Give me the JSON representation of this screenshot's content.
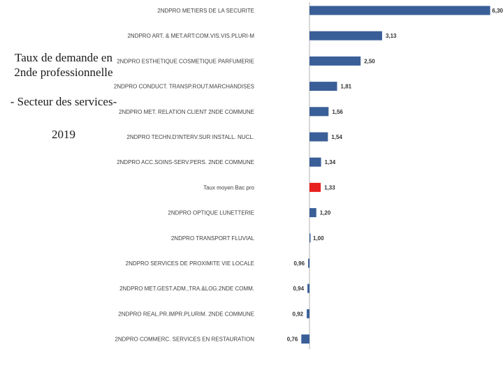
{
  "side_title": {
    "line1": "Taux de demande en 2nde professionnelle",
    "line2": "- Secteur des services-",
    "line3": "2019"
  },
  "colors": {
    "bar": "#3a5f98",
    "highlight": "#e8201f",
    "axis": "#bfbfbf"
  },
  "chart_data": {
    "type": "bar",
    "orientation": "horizontal",
    "title": "Taux de demande en 2nde professionnelle - Secteur des services- 2019",
    "baseline": 1.0,
    "categories": [
      "2NDPRO METIERS DE LA SECURITE",
      "2NDPRO ART. & MET.ART:COM.VIS.VIS.PLURI-M",
      "2NDPRO ESTHETIQUE COSMETIQUE PARFUMERIE",
      "2NDPRO CONDUCT. TRANSP.ROUT.MARCHANDISES",
      "2NDPRO MET. RELATION CLIENT 2NDE COMMUNE",
      "2NDPRO TECHN.D'INTERV.SUR INSTALL. NUCL.",
      "2NDPRO ACC.SOINS-SERV.PERS. 2NDE COMMUNE",
      "Taux moyen Bac pro",
      "2NDPRO OPTIQUE LUNETTERIE",
      "2NDPRO TRANSPORT FLUVIAL",
      "2NDPRO SERVICES DE PROXIMITE VIE LOCALE",
      "2NDPRO MET.GEST.ADM.,TRA.&LOG.2NDE COMM.",
      "2NDPRO REAL.PR.IMPR.PLURIM. 2NDE COMMUNE",
      "2NDPRO COMMERC. SERVICES EN RESTAURATION"
    ],
    "values": [
      6.3,
      3.13,
      2.5,
      1.81,
      1.56,
      1.54,
      1.34,
      1.33,
      1.2,
      1.0,
      0.96,
      0.94,
      0.92,
      0.76
    ],
    "value_labels": [
      "6,30",
      "3,13",
      "2,50",
      "1,81",
      "1,56",
      "1,54",
      "1,34",
      "1,33",
      "1,20",
      "1,00",
      "0,96",
      "0,94",
      "0,92",
      "0,76"
    ],
    "highlight_index": 7,
    "xlim": [
      0.76,
      6.3
    ]
  }
}
